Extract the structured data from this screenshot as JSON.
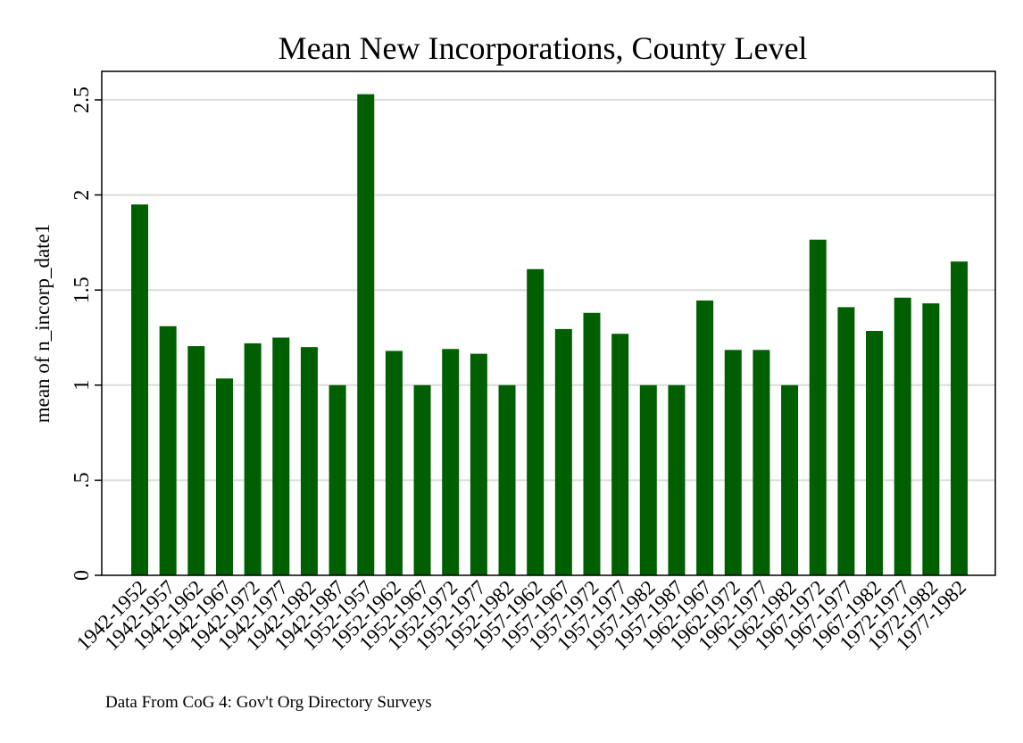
{
  "chart_data": {
    "type": "bar",
    "title": "Mean New Incorporations, County Level",
    "ylabel": "mean of n_incorp_date1",
    "xlabel": "",
    "note": "Data From CoG 4: Gov't Org Directory Surveys",
    "ylim": [
      0,
      2.65
    ],
    "yticks": [
      {
        "value": 0,
        "label": "0"
      },
      {
        "value": 0.5,
        "label": ".5"
      },
      {
        "value": 1,
        "label": "1"
      },
      {
        "value": 1.5,
        "label": "1.5"
      },
      {
        "value": 2,
        "label": "2"
      },
      {
        "value": 2.5,
        "label": "2.5"
      }
    ],
    "grid": true,
    "bar_color": "#005f00",
    "categories": [
      "1942-1952",
      "1942-1957",
      "1942-1962",
      "1942-1967",
      "1942-1972",
      "1942-1977",
      "1942-1982",
      "1942-1987",
      "1952-1957",
      "1952-1962",
      "1952-1967",
      "1952-1972",
      "1952-1977",
      "1952-1982",
      "1957-1962",
      "1957-1967",
      "1957-1972",
      "1957-1977",
      "1957-1982",
      "1957-1987",
      "1962-1967",
      "1962-1972",
      "1962-1977",
      "1962-1982",
      "1967-1972",
      "1967-1977",
      "1967-1982",
      "1972-1977",
      "1972-1982",
      "1977-1982"
    ],
    "values": [
      1.95,
      1.31,
      1.205,
      1.035,
      1.22,
      1.25,
      1.2,
      1.0,
      2.53,
      1.18,
      1.0,
      1.19,
      1.165,
      1.0,
      1.61,
      1.295,
      1.38,
      1.27,
      1.0,
      1.0,
      1.445,
      1.185,
      1.185,
      1.0,
      1.765,
      1.41,
      1.285,
      1.46,
      1.43,
      1.65
    ]
  }
}
